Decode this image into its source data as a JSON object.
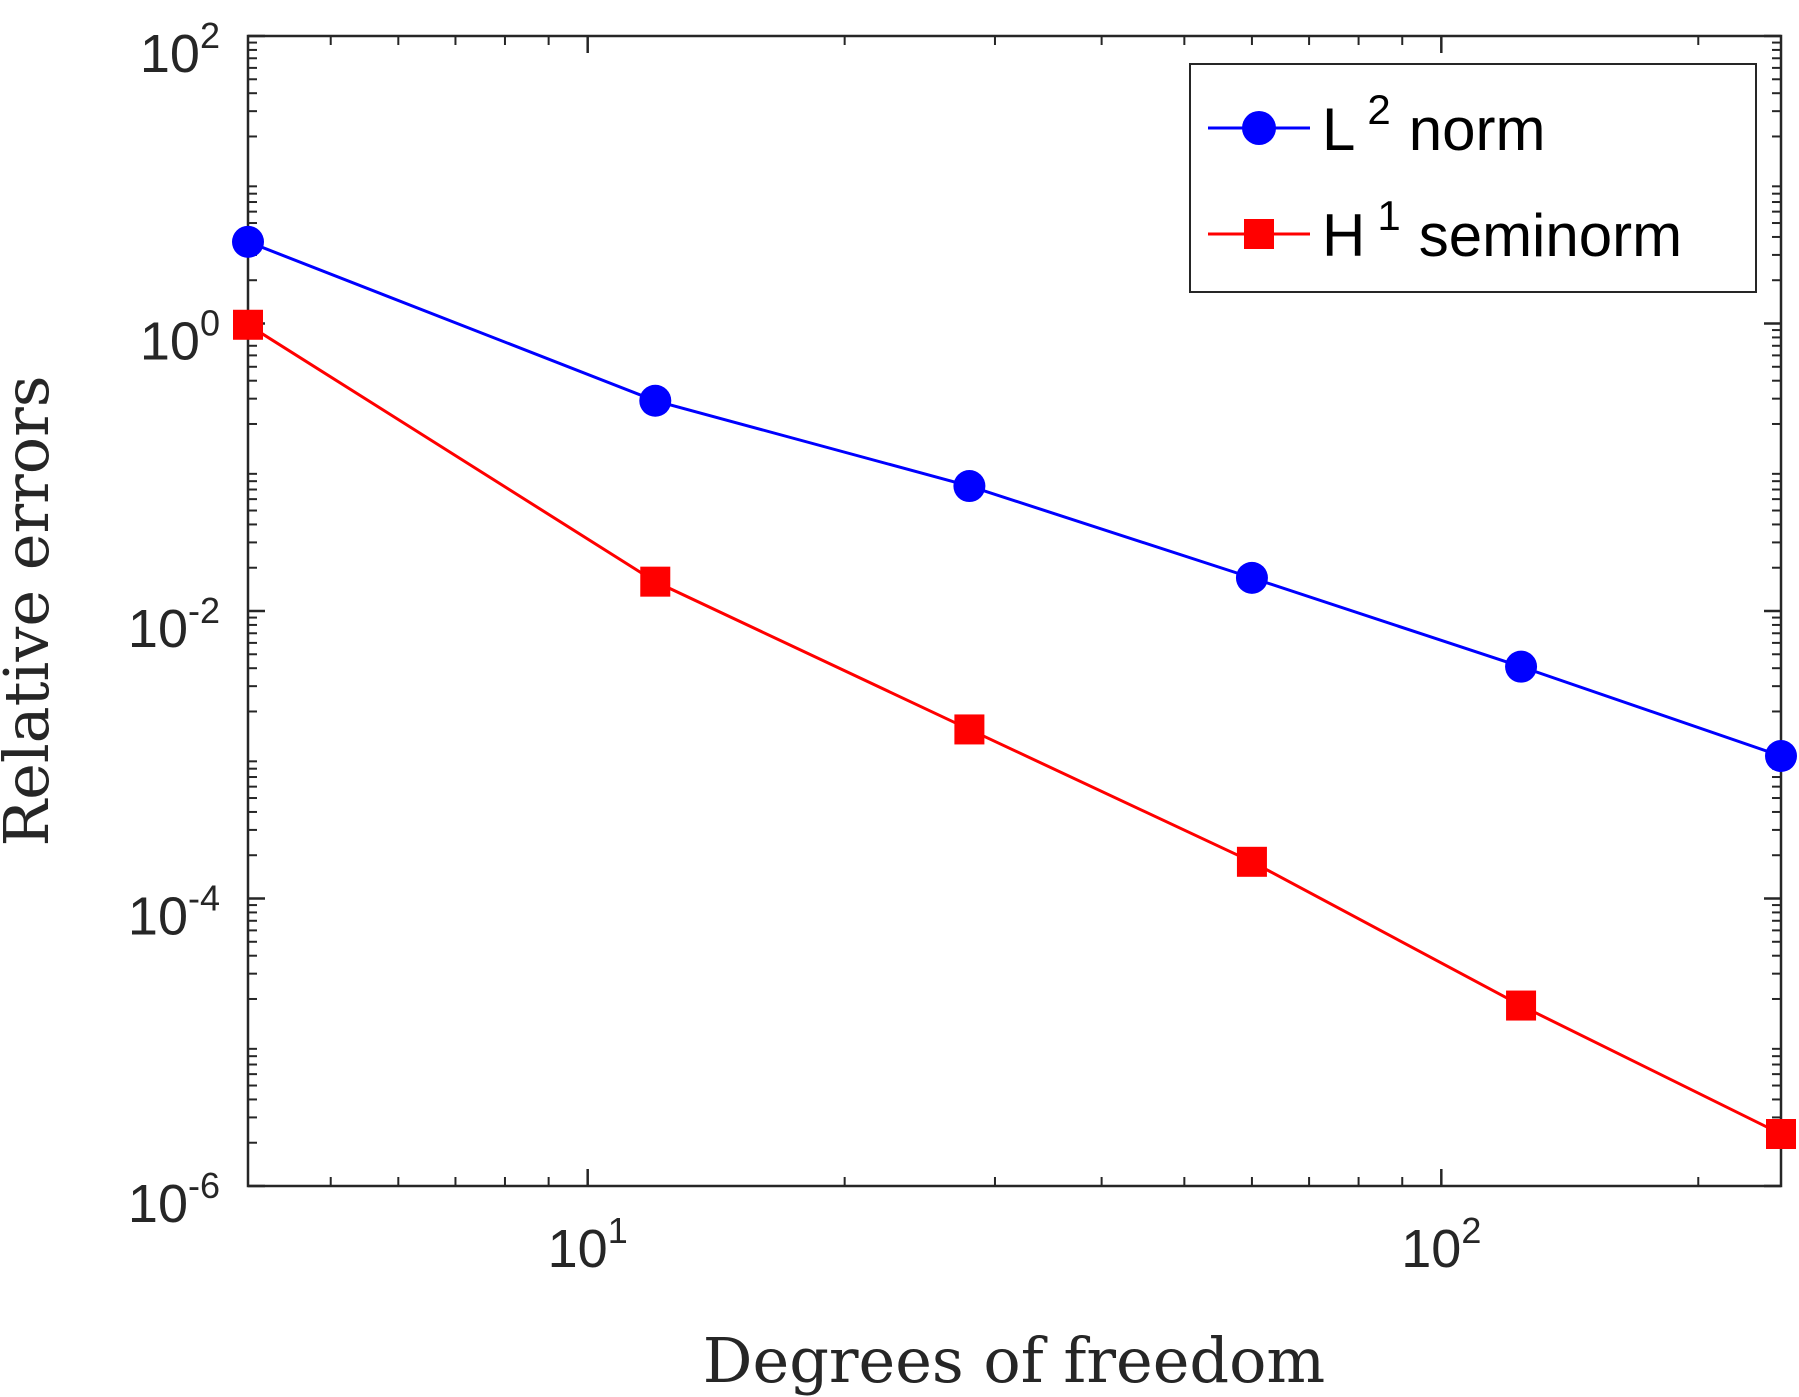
{
  "chart_data": {
    "type": "line",
    "scale": {
      "x": "log",
      "y": "log"
    },
    "xlabel": "Degrees of freedom",
    "ylabel": "Relative errors",
    "xlim": [
      4,
      250
    ],
    "ylim": [
      1e-06,
      100
    ],
    "x_ticks": [
      {
        "value": 10,
        "base": "10",
        "exp": "1"
      },
      {
        "value": 100,
        "base": "10",
        "exp": "2"
      }
    ],
    "y_ticks": [
      {
        "value": 1e-06,
        "base": "10",
        "exp": "-6"
      },
      {
        "value": 0.0001,
        "base": "10",
        "exp": "-4"
      },
      {
        "value": 0.01,
        "base": "10",
        "exp": "-2"
      },
      {
        "value": 1,
        "base": "10",
        "exp": "0"
      },
      {
        "value": 100,
        "base": "10",
        "exp": "2"
      }
    ],
    "x": [
      4,
      12,
      28,
      60,
      124,
      250
    ],
    "series": [
      {
        "name": "L² norm",
        "label_base": "L",
        "label_sup": "2",
        "label_rest": "norm",
        "color": "#0000ff",
        "marker": "circle",
        "values": [
          3.7,
          0.29,
          0.074,
          0.017,
          0.0041,
          0.00098
        ]
      },
      {
        "name": "H¹ seminorm",
        "label_base": "H",
        "label_sup": "1",
        "label_rest": "seminorm",
        "color": "#ff0000",
        "marker": "square",
        "values": [
          0.98,
          0.016,
          0.0015,
          0.00018,
          1.8e-05,
          2.3e-06
        ]
      }
    ],
    "legend_position": "top-right",
    "grid": false
  }
}
